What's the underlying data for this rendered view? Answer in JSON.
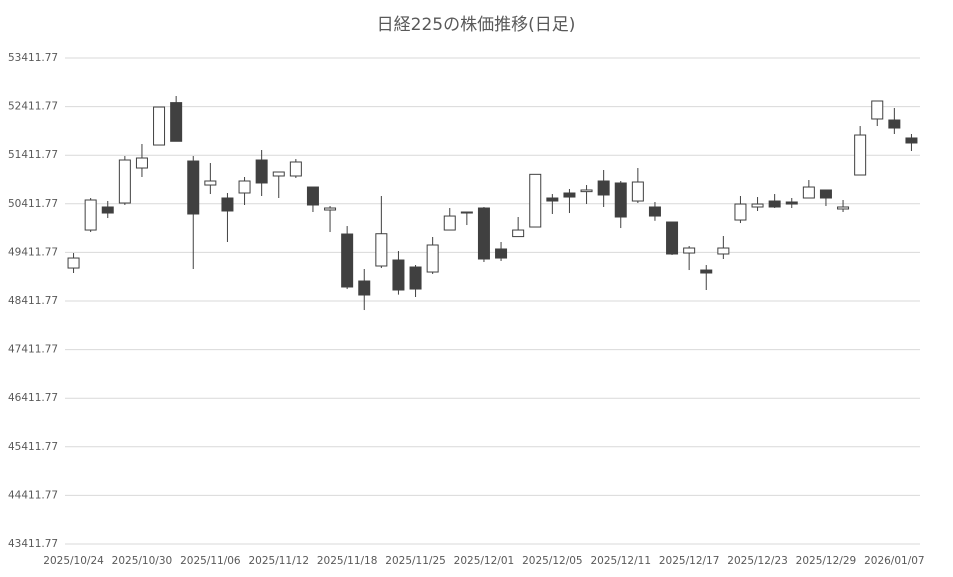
{
  "chart_data": {
    "type": "candlestick",
    "title": "日経225の株価推移(日足)",
    "categories": [
      "2025/10/24",
      null,
      null,
      null,
      "2025/10/30",
      null,
      null,
      null,
      "2025/11/06",
      null,
      null,
      null,
      "2025/11/12",
      null,
      null,
      null,
      "2025/11/18",
      null,
      null,
      null,
      "2025/11/25",
      null,
      null,
      null,
      "2025/12/01",
      null,
      null,
      null,
      "2025/12/05",
      null,
      null,
      null,
      "2025/12/11",
      null,
      null,
      null,
      "2025/12/17",
      null,
      null,
      null,
      "2025/12/23",
      null,
      null,
      null,
      "2025/12/29",
      null,
      null,
      null,
      "2026/01/07",
      null
    ],
    "open": [
      49090,
      49872,
      50346,
      50428,
      51148,
      51621,
      52494,
      51292,
      50798,
      50531,
      50634,
      51313,
      50984,
      50984,
      50757,
      50284,
      49790,
      48823,
      49132,
      49255,
      49111,
      49008,
      49872,
      50222,
      50325,
      49482,
      49737,
      49934,
      50531,
      50634,
      50662,
      50881,
      50840,
      50469,
      50346,
      50037,
      49399,
      49049,
      49379,
      50078,
      50346,
      50469,
      50449,
      50531,
      50696,
      50305,
      51004,
      52157,
      52136,
      51766
    ],
    "high": [
      49399,
      50531,
      50470,
      51395,
      51642,
      52403,
      52630,
      51395,
      51251,
      50634,
      50963,
      51519,
      51066,
      51333,
      50757,
      50366,
      49954,
      49070,
      50572,
      49440,
      49152,
      49729,
      50325,
      50243,
      50346,
      49626,
      50140,
      51018,
      50613,
      50716,
      50798,
      51107,
      50881,
      51148,
      50449,
      50037,
      49543,
      49152,
      49749,
      50572,
      50551,
      50613,
      50531,
      50901,
      50696,
      50490,
      52012,
      52527,
      52383,
      51848
    ],
    "low": [
      48988,
      49831,
      50119,
      50387,
      50963,
      51621,
      51698,
      49070,
      50613,
      49626,
      50387,
      50572,
      50531,
      50943,
      50243,
      49831,
      48658,
      48226,
      49090,
      48543,
      48494,
      48967,
      49872,
      49975,
      49214,
      49235,
      49737,
      49934,
      50202,
      50222,
      50408,
      50346,
      49913,
      50428,
      50062,
      49358,
      49049,
      48638,
      49276,
      50016,
      50264,
      50325,
      50325,
      50531,
      50366,
      50243,
      51004,
      52012,
      51848,
      51498
    ],
    "close": [
      49296,
      50490,
      50222,
      51313,
      51354,
      52403,
      51698,
      50202,
      50881,
      50264,
      50881,
      50840,
      51066,
      51272,
      50387,
      50325,
      48700,
      48535,
      49796,
      48638,
      48658,
      49564,
      50160,
      50243,
      49276,
      49296,
      49872,
      51018,
      50469,
      50551,
      50696,
      50593,
      50140,
      50860,
      50160,
      49379,
      49502,
      48988,
      49502,
      50407,
      50407,
      50346,
      50407,
      50757,
      50531,
      50346,
      51827,
      52527,
      51971,
      51663
    ],
    "up_color": "#ffffff",
    "down_color": "#404040",
    "edge_color": "#404040",
    "ylim": [
      43411.77,
      53411.77
    ],
    "yticks": [
      43411.77,
      44411.77,
      45411.77,
      46411.77,
      47411.77,
      48411.77,
      49411.77,
      50411.77,
      51411.77,
      52411.77,
      53411.77
    ],
    "grid": true
  }
}
